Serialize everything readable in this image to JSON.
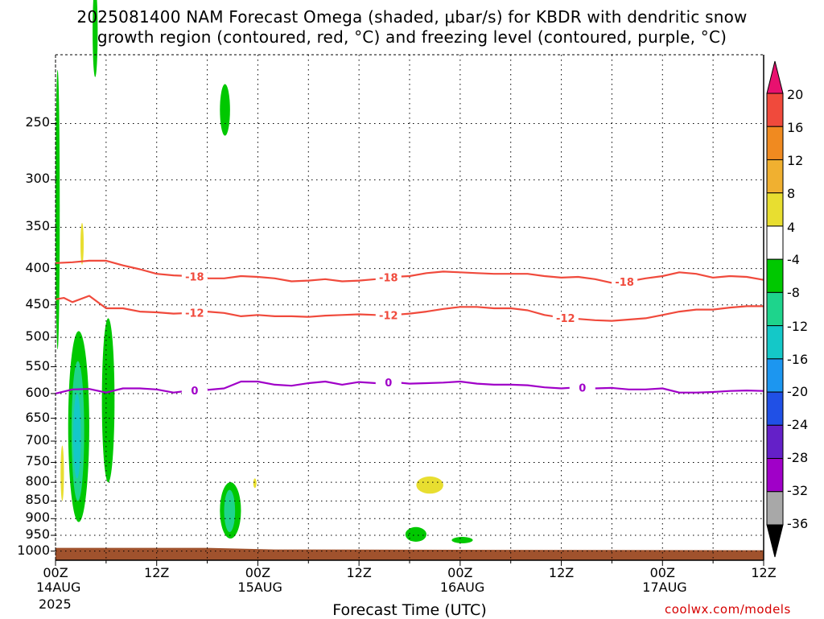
{
  "title": {
    "line1": "2025081400 NAM Forecast Omega (shaded, μbar/s) for KBDR with dendritic snow",
    "line2": "growth region (contoured, red, °C) and freezing level (contoured, purple, °C)"
  },
  "x_axis": {
    "title": "Forecast Time (UTC)",
    "ticks": [
      {
        "hour": 0,
        "label": "00Z",
        "date": "14AUG"
      },
      {
        "hour": 12,
        "label": "12Z",
        "date": ""
      },
      {
        "hour": 24,
        "label": "00Z",
        "date": "15AUG"
      },
      {
        "hour": 36,
        "label": "12Z",
        "date": ""
      },
      {
        "hour": 48,
        "label": "00Z",
        "date": "16AUG"
      },
      {
        "hour": 60,
        "label": "12Z",
        "date": ""
      },
      {
        "hour": 72,
        "label": "00Z",
        "date": "17AUG"
      },
      {
        "hour": 84,
        "label": "12Z",
        "date": ""
      }
    ],
    "year": "2025"
  },
  "y_axis": {
    "ticks": [
      250,
      300,
      350,
      400,
      450,
      500,
      550,
      600,
      650,
      700,
      750,
      800,
      850,
      900,
      950,
      1000
    ],
    "range": [
      200,
      1030
    ]
  },
  "colorbar": {
    "labels": [
      "20",
      "16",
      "12",
      "8",
      "4",
      "-4",
      "-8",
      "-12",
      "-16",
      "-20",
      "-24",
      "-28",
      "-32",
      "-36"
    ],
    "colors": [
      "#e8116f",
      "#f04a3c",
      "#f08a20",
      "#f0b030",
      "#e8de30",
      "#ffffff",
      "#00c800",
      "#1ed48c",
      "#14c8c8",
      "#1c96f0",
      "#2050e6",
      "#6420c8",
      "#a000c8",
      "#a8a8a8",
      "#000000"
    ]
  },
  "watermark": "coolwx.com/models",
  "chart_data": {
    "type": "time-height cross-section",
    "x_unit": "forecast hour from 2025-08-14 00Z",
    "y_unit": "hPa",
    "xlim": [
      0,
      84
    ],
    "ylim_hPa": [
      1030,
      200
    ],
    "grid": true,
    "contours": [
      {
        "name": "-18",
        "color": "#f04a3c",
        "labels_at_hours": [
          16.5,
          39.5,
          67.5
        ],
        "points": [
          [
            0,
            393
          ],
          [
            2,
            392
          ],
          [
            4,
            390
          ],
          [
            6,
            390
          ],
          [
            8,
            396
          ],
          [
            10,
            401
          ],
          [
            12,
            407
          ],
          [
            14,
            409
          ],
          [
            16,
            410
          ],
          [
            18,
            413
          ],
          [
            20,
            413
          ],
          [
            22,
            410
          ],
          [
            24,
            411
          ],
          [
            26,
            413
          ],
          [
            28,
            417
          ],
          [
            30,
            416
          ],
          [
            32,
            414
          ],
          [
            34,
            417
          ],
          [
            36,
            416
          ],
          [
            38,
            414
          ],
          [
            40,
            411
          ],
          [
            42,
            410
          ],
          [
            44,
            406
          ],
          [
            46,
            404
          ],
          [
            48,
            405
          ],
          [
            50,
            406
          ],
          [
            52,
            407
          ],
          [
            54,
            407
          ],
          [
            56,
            407
          ],
          [
            58,
            410
          ],
          [
            60,
            412
          ],
          [
            62,
            411
          ],
          [
            64,
            414
          ],
          [
            66,
            419
          ],
          [
            68,
            417
          ],
          [
            70,
            413
          ],
          [
            72,
            410
          ],
          [
            74,
            405
          ],
          [
            76,
            407
          ],
          [
            78,
            412
          ],
          [
            80,
            410
          ],
          [
            82,
            411
          ],
          [
            84,
            415
          ]
        ]
      },
      {
        "name": "-12",
        "color": "#f04a3c",
        "labels_at_hours": [
          16.5,
          39.5,
          60.5
        ],
        "points": [
          [
            0,
            442
          ],
          [
            1,
            440
          ],
          [
            2,
            446
          ],
          [
            4,
            437
          ],
          [
            6,
            455
          ],
          [
            8,
            455
          ],
          [
            10,
            460
          ],
          [
            12,
            461
          ],
          [
            14,
            463
          ],
          [
            16,
            462
          ],
          [
            18,
            460
          ],
          [
            20,
            462
          ],
          [
            22,
            467
          ],
          [
            24,
            465
          ],
          [
            26,
            467
          ],
          [
            28,
            467
          ],
          [
            30,
            468
          ],
          [
            32,
            466
          ],
          [
            34,
            465
          ],
          [
            36,
            464
          ],
          [
            38,
            465
          ],
          [
            40,
            465
          ],
          [
            42,
            463
          ],
          [
            44,
            460
          ],
          [
            46,
            456
          ],
          [
            48,
            453
          ],
          [
            50,
            453
          ],
          [
            52,
            455
          ],
          [
            54,
            455
          ],
          [
            56,
            458
          ],
          [
            58,
            465
          ],
          [
            60,
            469
          ],
          [
            62,
            471
          ],
          [
            64,
            473
          ],
          [
            66,
            474
          ],
          [
            68,
            472
          ],
          [
            70,
            470
          ],
          [
            72,
            465
          ],
          [
            74,
            460
          ],
          [
            76,
            457
          ],
          [
            78,
            457
          ],
          [
            80,
            454
          ],
          [
            82,
            452
          ],
          [
            84,
            452
          ]
        ]
      },
      {
        "name": "0",
        "color": "#a000c8",
        "labels_at_hours": [
          16.5,
          39.5,
          62.5
        ],
        "points": [
          [
            0,
            600
          ],
          [
            2,
            592
          ],
          [
            4,
            591
          ],
          [
            6,
            598
          ],
          [
            8,
            590
          ],
          [
            10,
            590
          ],
          [
            12,
            592
          ],
          [
            14,
            598
          ],
          [
            16,
            594
          ],
          [
            18,
            593
          ],
          [
            20,
            590
          ],
          [
            22,
            577
          ],
          [
            24,
            577
          ],
          [
            26,
            583
          ],
          [
            28,
            585
          ],
          [
            30,
            580
          ],
          [
            32,
            577
          ],
          [
            34,
            583
          ],
          [
            36,
            578
          ],
          [
            38,
            580
          ],
          [
            40,
            578
          ],
          [
            42,
            581
          ],
          [
            44,
            580
          ],
          [
            46,
            579
          ],
          [
            48,
            577
          ],
          [
            50,
            581
          ],
          [
            52,
            583
          ],
          [
            54,
            583
          ],
          [
            56,
            584
          ],
          [
            58,
            588
          ],
          [
            60,
            590
          ],
          [
            62,
            588
          ],
          [
            64,
            590
          ],
          [
            66,
            589
          ],
          [
            68,
            592
          ],
          [
            70,
            592
          ],
          [
            72,
            590
          ],
          [
            74,
            598
          ],
          [
            76,
            598
          ],
          [
            78,
            597
          ],
          [
            80,
            595
          ],
          [
            82,
            594
          ],
          [
            84,
            595
          ]
        ]
      }
    ],
    "omega_shaded_regions": [
      {
        "level": "-4 to -8",
        "color": "#00c800",
        "time_hours": [
          0,
          0.5
        ],
        "pressure_hPa": [
          210,
          520
        ]
      },
      {
        "level": "-4 to -8",
        "color": "#00c800",
        "time_hours": [
          4.4,
          5.0
        ],
        "pressure_hPa": [
          160,
          215
        ]
      },
      {
        "level": "-4 to -8",
        "color": "#00c800",
        "time_hours": [
          1.5,
          4.0
        ],
        "pressure_hPa": [
          490,
          910
        ]
      },
      {
        "level": "-8 to -12",
        "color": "#1ed48c",
        "time_hours": [
          1.9,
          3.4
        ],
        "pressure_hPa": [
          540,
          850
        ]
      },
      {
        "level": "-12 to -16",
        "color": "#14c8c8",
        "time_hours": [
          2.1,
          3.0
        ],
        "pressure_hPa": [
          600,
          790
        ]
      },
      {
        "level": "-4 to -8",
        "color": "#00c800",
        "time_hours": [
          5.5,
          7.0
        ],
        "pressure_hPa": [
          470,
          800
        ]
      },
      {
        "level": "-4 to -8",
        "color": "#00c800",
        "time_hours": [
          19.5,
          20.7
        ],
        "pressure_hPa": [
          220,
          260
        ]
      },
      {
        "level": "-4 to -8",
        "color": "#00c800",
        "time_hours": [
          19.5,
          22.0
        ],
        "pressure_hPa": [
          800,
          960
        ]
      },
      {
        "level": "-8 to -12",
        "color": "#1ed48c",
        "time_hours": [
          20.0,
          21.3
        ],
        "pressure_hPa": [
          820,
          940
        ]
      },
      {
        "level": "-4 to -8",
        "color": "#00c800",
        "time_hours": [
          41.5,
          44.0
        ],
        "pressure_hPa": [
          925,
          970
        ]
      },
      {
        "level": "-4 to -8",
        "color": "#00c800",
        "time_hours": [
          47.0,
          49.5
        ],
        "pressure_hPa": [
          955,
          975
        ]
      },
      {
        "level": "4 to 8",
        "color": "#e8de30",
        "time_hours": [
          0.6,
          1.0
        ],
        "pressure_hPa": [
          710,
          850
        ]
      },
      {
        "level": "4 to 8",
        "color": "#e8de30",
        "time_hours": [
          3.0,
          3.3
        ],
        "pressure_hPa": [
          345,
          395
        ]
      },
      {
        "level": "4 to 8",
        "color": "#e8de30",
        "time_hours": [
          42.8,
          46.0
        ],
        "pressure_hPa": [
          785,
          830
        ]
      },
      {
        "level": "4 to 8",
        "color": "#e8de30",
        "time_hours": [
          23.5,
          23.8
        ],
        "pressure_hPa": [
          790,
          815
        ]
      }
    ],
    "surface": {
      "color": "#a0522d",
      "pressure_hPa": 1005
    }
  }
}
